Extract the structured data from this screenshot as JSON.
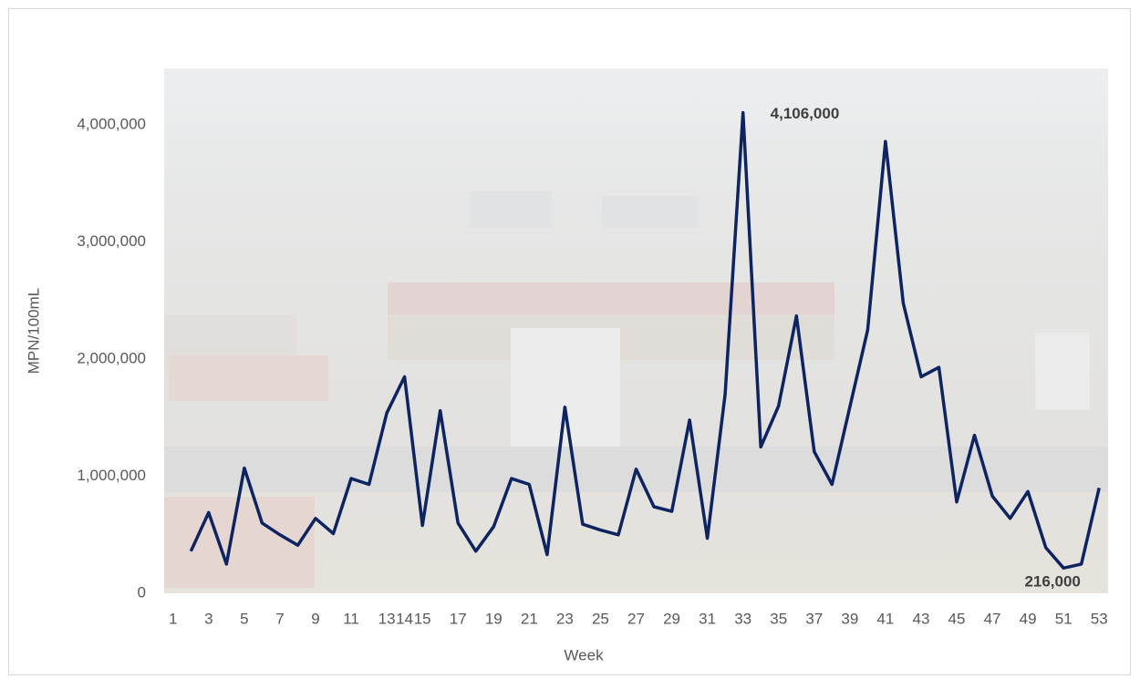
{
  "chart_data": {
    "type": "line",
    "x_label": "Week",
    "y_label": "MPN/100mL",
    "categories": [
      "1",
      null,
      "3",
      null,
      "5",
      null,
      "7",
      null,
      "9",
      null,
      "11",
      null,
      "13",
      "14",
      "15",
      null,
      "17",
      null,
      "19",
      null,
      "21",
      null,
      "23",
      null,
      "25",
      null,
      "27",
      null,
      "29",
      null,
      "31",
      null,
      "33",
      null,
      "35",
      null,
      "37",
      null,
      "39",
      null,
      "41",
      null,
      "43",
      null,
      "45",
      null,
      "47",
      null,
      "49",
      null,
      "51",
      null,
      "53"
    ],
    "values": [
      null,
      360000,
      690000,
      250000,
      1070000,
      600000,
      500000,
      410000,
      640000,
      510000,
      980000,
      930000,
      1540000,
      1850000,
      580000,
      1560000,
      600000,
      360000,
      570000,
      980000,
      930000,
      330000,
      1590000,
      590000,
      540000,
      500000,
      1060000,
      740000,
      700000,
      1480000,
      470000,
      1700000,
      4106000,
      1250000,
      1600000,
      2370000,
      1210000,
      930000,
      1590000,
      2250000,
      3860000,
      2480000,
      1850000,
      1930000,
      780000,
      1350000,
      830000,
      640000,
      870000,
      390000,
      216000,
      250000,
      900000
    ],
    "value_labels": [
      null,
      null,
      null,
      null,
      null,
      null,
      null,
      null,
      null,
      null,
      null,
      null,
      null,
      null,
      null,
      null,
      null,
      null,
      null,
      null,
      null,
      null,
      null,
      null,
      null,
      null,
      null,
      null,
      null,
      null,
      null,
      null,
      "4,106,000",
      null,
      null,
      null,
      null,
      null,
      null,
      null,
      null,
      null,
      null,
      null,
      null,
      null,
      null,
      null,
      null,
      null,
      "216,000",
      null,
      null
    ],
    "color": "#0d2461",
    "ylim": [
      0,
      4500000
    ],
    "yticks": [
      0,
      {
        "value": 1000000,
        "label": "1,000,000"
      },
      {
        "value": 2000000,
        "label": "2,000,000"
      },
      {
        "value": 3000000,
        "label": "3,000,000"
      },
      {
        "value": 4000000,
        "label": "4,000,000"
      }
    ],
    "grid": false
  }
}
